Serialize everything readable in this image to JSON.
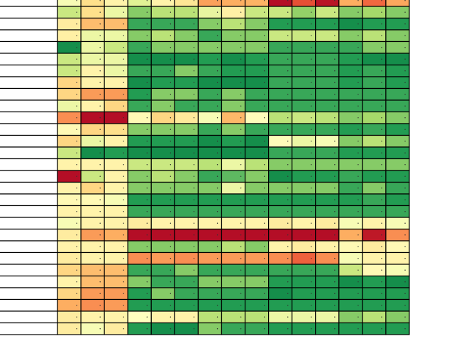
{
  "chart_data": {
    "type": "heatmap",
    "title": "",
    "xlabel": "",
    "ylabel": "",
    "value_range": [
      0,
      10
    ],
    "colormap": "RdYlGn",
    "row_labels": [],
    "column_labels": [],
    "cell_marker": "·",
    "values": [
      [
        5.2,
        4.0,
        4.6,
        5.8,
        4.6,
        4.2,
        2.8,
        3.0,
        3.1,
        0.3,
        1.5,
        0.4,
        3.0,
        1.9,
        2.9
      ],
      [
        6.3,
        4.0,
        5.5,
        7.5,
        6.6,
        6.6,
        5.6,
        4.5,
        6.3,
        6.3,
        7.3,
        6.3,
        7.5,
        7.0,
        7.5
      ],
      [
        4.4,
        3.3,
        3.3,
        8.6,
        8.6,
        8.6,
        7.5,
        6.6,
        7.5,
        8.9,
        8.9,
        8.9,
        9.2,
        8.9,
        8.9
      ],
      [
        4.5,
        5.5,
        5.5,
        7.5,
        6.6,
        7.5,
        8.6,
        7.5,
        7.5,
        6.3,
        6.3,
        6.3,
        7.5,
        6.6,
        7.5
      ],
      [
        9.2,
        5.5,
        6.3,
        8.6,
        7.5,
        7.5,
        7.5,
        7.5,
        7.5,
        8.6,
        8.6,
        8.6,
        8.6,
        7.5,
        7.5
      ],
      [
        6.3,
        5.5,
        5.5,
        9.2,
        9.2,
        9.2,
        8.9,
        9.2,
        8.9,
        8.6,
        8.6,
        8.6,
        8.9,
        9.2,
        9.2
      ],
      [
        6.3,
        4.6,
        5.5,
        8.6,
        8.6,
        7.5,
        8.6,
        8.9,
        8.9,
        8.6,
        8.6,
        8.6,
        8.9,
        8.6,
        8.9
      ],
      [
        3.8,
        4.6,
        4.6,
        9.2,
        8.9,
        8.9,
        9.2,
        9.2,
        9.2,
        8.6,
        8.6,
        8.6,
        8.9,
        8.6,
        8.9
      ],
      [
        3.8,
        2.7,
        2.7,
        8.9,
        7.5,
        7.5,
        8.6,
        7.5,
        8.6,
        8.6,
        8.6,
        8.6,
        8.6,
        8.6,
        8.6
      ],
      [
        5.5,
        4.6,
        3.8,
        8.6,
        7.5,
        8.6,
        8.6,
        7.5,
        8.6,
        8.6,
        8.6,
        8.6,
        8.6,
        8.6,
        8.6
      ],
      [
        2.5,
        0.3,
        0.3,
        4.8,
        3.8,
        4.3,
        5.2,
        3.2,
        4.9,
        6.6,
        6.3,
        6.6,
        7.5,
        7.0,
        7.5
      ],
      [
        4.8,
        3.8,
        4.0,
        7.5,
        7.5,
        7.5,
        8.6,
        7.5,
        8.6,
        8.6,
        8.6,
        8.6,
        8.9,
        8.6,
        8.9
      ],
      [
        3.8,
        5.5,
        4.6,
        8.9,
        8.9,
        8.9,
        9.2,
        8.9,
        9.2,
        4.9,
        5.5,
        5.2,
        7.5,
        6.6,
        7.5
      ],
      [
        6.3,
        9.2,
        8.9,
        9.2,
        9.2,
        9.2,
        9.2,
        9.2,
        9.2,
        8.6,
        8.6,
        8.6,
        8.9,
        8.9,
        8.9
      ],
      [
        4.6,
        4.6,
        4.6,
        6.3,
        6.3,
        6.3,
        6.6,
        5.5,
        6.6,
        7.5,
        7.5,
        7.5,
        7.5,
        7.5,
        7.5
      ],
      [
        0.3,
        6.3,
        4.6,
        7.5,
        6.6,
        7.5,
        8.6,
        8.1,
        7.5,
        9.2,
        8.9,
        8.9,
        8.6,
        8.9,
        8.9
      ],
      [
        4.6,
        3.8,
        4.6,
        7.5,
        7.5,
        7.5,
        7.5,
        5.5,
        7.5,
        7.5,
        7.5,
        7.5,
        8.6,
        7.5,
        8.6
      ],
      [
        4.8,
        4.8,
        5.2,
        8.9,
        8.9,
        8.9,
        8.9,
        8.9,
        8.9,
        8.9,
        8.9,
        8.9,
        8.9,
        8.6,
        8.9
      ],
      [
        4.6,
        4.6,
        4.6,
        8.6,
        8.6,
        8.6,
        8.6,
        8.6,
        8.6,
        8.6,
        8.6,
        8.6,
        8.6,
        8.6,
        8.6
      ],
      [
        5.2,
        4.6,
        4.6,
        4.4,
        4.6,
        4.6,
        4.6,
        4.6,
        4.6,
        4.4,
        4.6,
        4.4,
        5.2,
        4.6,
        5.2
      ],
      [
        4.4,
        2.7,
        3.0,
        0.3,
        0.3,
        0.3,
        0.3,
        0.3,
        0.3,
        0.3,
        0.3,
        0.3,
        3.0,
        0.5,
        2.5
      ],
      [
        4.6,
        4.6,
        4.6,
        7.5,
        7.5,
        7.5,
        7.5,
        6.6,
        7.5,
        4.6,
        4.4,
        4.6,
        4.8,
        4.4,
        4.8
      ],
      [
        4.4,
        4.6,
        4.6,
        2.5,
        2.7,
        2.5,
        2.7,
        2.7,
        2.7,
        2.5,
        1.8,
        2.5,
        5.2,
        4.6,
        4.6
      ],
      [
        3.8,
        3.3,
        3.3,
        8.6,
        8.6,
        7.5,
        8.6,
        8.6,
        8.6,
        8.6,
        8.6,
        8.6,
        6.3,
        4.8,
        5.2
      ],
      [
        4.6,
        3.3,
        3.3,
        7.5,
        8.6,
        8.6,
        7.5,
        7.5,
        7.5,
        8.9,
        8.9,
        8.9,
        9.2,
        8.9,
        9.2
      ],
      [
        3.8,
        2.7,
        2.7,
        8.9,
        7.5,
        8.6,
        8.6,
        8.6,
        8.6,
        9.2,
        8.9,
        8.9,
        8.9,
        8.9,
        8.9
      ],
      [
        3.0,
        2.5,
        2.7,
        8.9,
        8.9,
        8.9,
        8.9,
        8.9,
        8.9,
        8.9,
        8.9,
        8.9,
        8.9,
        8.9,
        8.9
      ],
      [
        4.4,
        4.6,
        4.6,
        5.0,
        4.6,
        4.6,
        6.6,
        6.6,
        6.6,
        5.5,
        5.5,
        5.5,
        7.5,
        6.6,
        7.5
      ],
      [
        4.4,
        5.2,
        4.4,
        8.9,
        9.2,
        9.2,
        7.5,
        8.6,
        8.6,
        8.9,
        8.9,
        8.9,
        8.9,
        8.9,
        8.9
      ]
    ]
  }
}
